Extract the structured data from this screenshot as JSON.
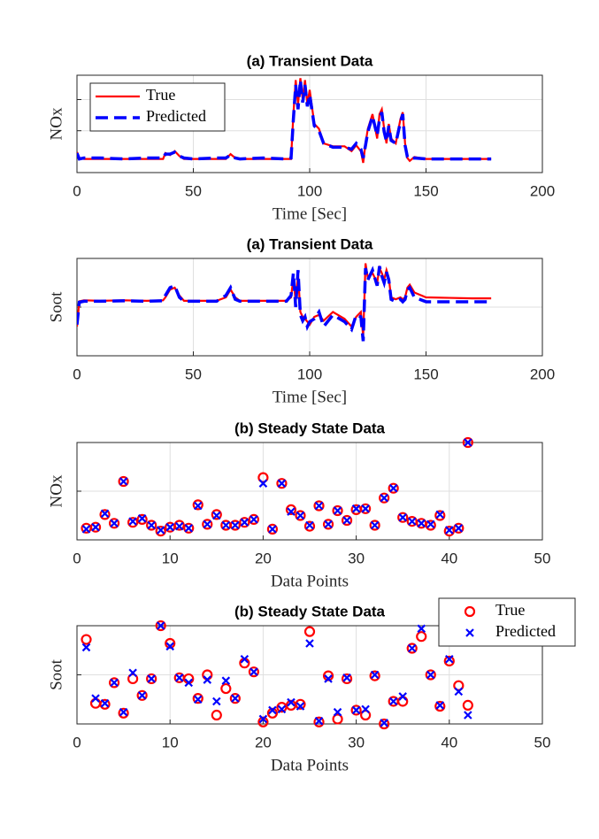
{
  "chart_data": [
    {
      "type": "line",
      "title": "(a) Transient Data",
      "xlabel": "Time [Sec]",
      "ylabel": "NOx",
      "xlim": [
        0,
        200
      ],
      "xticks": [
        0,
        50,
        100,
        150,
        200
      ],
      "ylim": [
        0,
        1
      ],
      "ygrid": [
        0.43,
        0.75
      ],
      "grid": true,
      "legend": "northwest",
      "x": [
        0,
        1,
        3,
        10,
        20,
        30,
        37,
        38,
        40,
        42,
        44,
        46,
        50,
        60,
        64,
        66,
        68,
        70,
        80,
        90,
        92,
        93,
        94,
        95,
        96,
        97,
        98,
        99,
        100,
        102,
        104,
        106,
        110,
        115,
        118,
        120,
        122,
        123,
        124,
        125,
        127,
        129,
        130,
        131,
        132,
        133,
        134,
        135,
        137,
        139,
        140,
        141,
        142,
        143,
        145,
        150,
        160,
        170,
        178
      ],
      "series": [
        {
          "name": "True",
          "color": "#ff0000",
          "linestyle": "solid",
          "values": [
            0.21,
            0.15,
            0.14,
            0.14,
            0.14,
            0.14,
            0.14,
            0.2,
            0.18,
            0.22,
            0.17,
            0.14,
            0.14,
            0.14,
            0.14,
            0.19,
            0.15,
            0.14,
            0.14,
            0.14,
            0.14,
            0.6,
            0.95,
            0.7,
            0.97,
            0.75,
            0.95,
            0.7,
            0.85,
            0.5,
            0.45,
            0.3,
            0.27,
            0.27,
            0.22,
            0.28,
            0.22,
            0.1,
            0.3,
            0.45,
            0.6,
            0.35,
            0.6,
            0.65,
            0.45,
            0.3,
            0.5,
            0.35,
            0.3,
            0.55,
            0.62,
            0.3,
            0.15,
            0.12,
            0.16,
            0.14,
            0.14,
            0.14,
            0.14
          ]
        },
        {
          "name": "Predicted",
          "color": "#0000ff",
          "linestyle": "dashed",
          "values": [
            0.2,
            0.14,
            0.15,
            0.15,
            0.14,
            0.15,
            0.15,
            0.19,
            0.19,
            0.21,
            0.17,
            0.15,
            0.14,
            0.15,
            0.15,
            0.18,
            0.15,
            0.14,
            0.15,
            0.14,
            0.15,
            0.55,
            0.9,
            0.65,
            0.95,
            0.72,
            0.9,
            0.68,
            0.8,
            0.48,
            0.43,
            0.3,
            0.26,
            0.26,
            0.24,
            0.3,
            0.24,
            0.15,
            0.28,
            0.42,
            0.58,
            0.38,
            0.55,
            0.62,
            0.42,
            0.32,
            0.48,
            0.33,
            0.3,
            0.52,
            0.6,
            0.28,
            0.16,
            0.14,
            0.15,
            0.14,
            0.14,
            0.14,
            0.14
          ]
        }
      ]
    },
    {
      "type": "line",
      "title": "(a) Transient Data",
      "xlabel": "Time [Sec]",
      "ylabel": "Soot",
      "xlim": [
        0,
        200
      ],
      "xticks": [
        0,
        50,
        100,
        150,
        200
      ],
      "ylim": [
        0,
        1
      ],
      "ygrid": [
        0.5
      ],
      "grid": true,
      "x": [
        0,
        1,
        3,
        10,
        20,
        30,
        37,
        38,
        40,
        42,
        44,
        46,
        50,
        60,
        64,
        66,
        68,
        70,
        80,
        90,
        92,
        93,
        94,
        95,
        96,
        97,
        98,
        99,
        100,
        102,
        104,
        106,
        110,
        115,
        118,
        120,
        122,
        123,
        124,
        125,
        127,
        129,
        130,
        131,
        132,
        133,
        134,
        135,
        137,
        139,
        140,
        141,
        142,
        143,
        145,
        150,
        160,
        170,
        178
      ],
      "series": [
        {
          "name": "True",
          "color": "#ff0000",
          "linestyle": "solid",
          "values": [
            0.3,
            0.56,
            0.57,
            0.565,
            0.57,
            0.565,
            0.57,
            0.6,
            0.68,
            0.7,
            0.62,
            0.565,
            0.565,
            0.565,
            0.6,
            0.68,
            0.6,
            0.565,
            0.565,
            0.565,
            0.6,
            0.8,
            0.55,
            0.84,
            0.45,
            0.4,
            0.38,
            0.35,
            0.32,
            0.4,
            0.42,
            0.36,
            0.45,
            0.38,
            0.3,
            0.4,
            0.45,
            0.2,
            0.95,
            0.8,
            0.85,
            0.75,
            0.9,
            0.85,
            0.78,
            0.88,
            0.8,
            0.6,
            0.58,
            0.6,
            0.58,
            0.6,
            0.7,
            0.73,
            0.65,
            0.6,
            0.595,
            0.59,
            0.59
          ]
        },
        {
          "name": "Predicted",
          "color": "#0000ff",
          "linestyle": "dashed",
          "values": [
            0.32,
            0.55,
            0.56,
            0.56,
            0.565,
            0.56,
            0.565,
            0.62,
            0.7,
            0.72,
            0.6,
            0.56,
            0.56,
            0.56,
            0.62,
            0.7,
            0.58,
            0.56,
            0.56,
            0.56,
            0.62,
            0.85,
            0.5,
            0.88,
            0.42,
            0.36,
            0.4,
            0.3,
            0.35,
            0.38,
            0.45,
            0.3,
            0.42,
            0.35,
            0.27,
            0.42,
            0.4,
            0.15,
            0.9,
            0.78,
            0.88,
            0.72,
            0.92,
            0.82,
            0.75,
            0.86,
            0.78,
            0.58,
            0.555,
            0.58,
            0.555,
            0.58,
            0.68,
            0.7,
            0.6,
            0.555,
            0.555,
            0.555,
            0.555
          ]
        }
      ]
    },
    {
      "type": "scatter",
      "title": "(b) Steady State Data",
      "xlabel": "Data Points",
      "ylabel": "NOx",
      "xlim": [
        0,
        50
      ],
      "xticks": [
        0,
        10,
        20,
        30,
        40,
        50
      ],
      "ylim": [
        0,
        1
      ],
      "ygrid": [
        0.5
      ],
      "grid": true,
      "x": [
        1,
        2,
        3,
        4,
        5,
        6,
        7,
        8,
        9,
        10,
        11,
        12,
        13,
        14,
        15,
        16,
        17,
        18,
        19,
        20,
        21,
        22,
        23,
        24,
        25,
        26,
        27,
        28,
        29,
        30,
        31,
        32,
        33,
        34,
        35,
        36,
        37,
        38,
        39,
        40,
        41,
        42
      ],
      "series": [
        {
          "name": "True",
          "color": "#ff0000",
          "marker": "o",
          "values": [
            0.12,
            0.13,
            0.26,
            0.17,
            0.6,
            0.18,
            0.21,
            0.15,
            0.09,
            0.13,
            0.15,
            0.12,
            0.36,
            0.16,
            0.26,
            0.15,
            0.15,
            0.18,
            0.21,
            0.64,
            0.11,
            0.58,
            0.31,
            0.25,
            0.14,
            0.35,
            0.16,
            0.3,
            0.2,
            0.31,
            0.32,
            0.15,
            0.43,
            0.53,
            0.23,
            0.19,
            0.17,
            0.15,
            0.25,
            0.09,
            0.12,
            1.0
          ]
        },
        {
          "name": "Predicted",
          "color": "#0000ff",
          "marker": "x",
          "values": [
            0.11,
            0.13,
            0.27,
            0.17,
            0.6,
            0.19,
            0.22,
            0.15,
            0.1,
            0.13,
            0.14,
            0.12,
            0.35,
            0.16,
            0.25,
            0.15,
            0.15,
            0.18,
            0.21,
            0.58,
            0.11,
            0.58,
            0.29,
            0.25,
            0.15,
            0.35,
            0.16,
            0.3,
            0.2,
            0.32,
            0.32,
            0.15,
            0.43,
            0.53,
            0.23,
            0.19,
            0.17,
            0.16,
            0.26,
            0.1,
            0.12,
            1.0
          ]
        }
      ]
    },
    {
      "type": "scatter",
      "title": "(b) Steady State Data",
      "xlabel": "Data Points",
      "ylabel": "Soot",
      "xlim": [
        0,
        50
      ],
      "xticks": [
        0,
        10,
        20,
        30,
        40,
        50
      ],
      "ylim": [
        0,
        1
      ],
      "ygrid": [
        0.5
      ],
      "grid": true,
      "legend": "northeast",
      "x": [
        1,
        2,
        3,
        4,
        5,
        6,
        7,
        8,
        9,
        10,
        11,
        12,
        13,
        14,
        15,
        16,
        17,
        18,
        19,
        20,
        21,
        22,
        23,
        24,
        25,
        26,
        27,
        28,
        29,
        30,
        31,
        32,
        33,
        34,
        35,
        36,
        37,
        38,
        39,
        40,
        41,
        42
      ],
      "series": [
        {
          "name": "True",
          "color": "#ff0000",
          "marker": "o",
          "values": [
            0.86,
            0.21,
            0.2,
            0.42,
            0.11,
            0.46,
            0.29,
            0.46,
            1.0,
            0.82,
            0.47,
            0.46,
            0.26,
            0.5,
            0.09,
            0.36,
            0.26,
            0.62,
            0.53,
            0.02,
            0.11,
            0.17,
            0.19,
            0.2,
            0.94,
            0.02,
            0.49,
            0.05,
            0.46,
            0.14,
            0.09,
            0.49,
            0.0,
            0.23,
            0.23,
            0.77,
            0.89,
            0.5,
            0.18,
            0.64,
            0.39,
            0.19
          ]
        },
        {
          "name": "Predicted",
          "color": "#0000ff",
          "marker": "x",
          "values": [
            0.78,
            0.26,
            0.21,
            0.42,
            0.12,
            0.52,
            0.29,
            0.46,
            1.0,
            0.79,
            0.47,
            0.42,
            0.25,
            0.45,
            0.23,
            0.44,
            0.26,
            0.66,
            0.53,
            0.05,
            0.14,
            0.15,
            0.22,
            0.18,
            0.82,
            0.03,
            0.46,
            0.12,
            0.47,
            0.14,
            0.15,
            0.5,
            0.01,
            0.23,
            0.28,
            0.77,
            0.97,
            0.5,
            0.19,
            0.66,
            0.33,
            0.09
          ]
        }
      ]
    }
  ]
}
